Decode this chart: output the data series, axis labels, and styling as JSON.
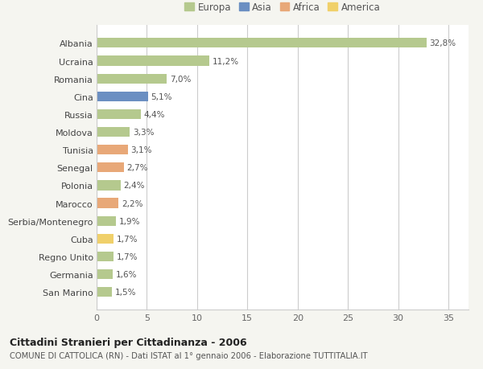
{
  "countries": [
    "Albania",
    "Ucraina",
    "Romania",
    "Cina",
    "Russia",
    "Moldova",
    "Tunisia",
    "Senegal",
    "Polonia",
    "Marocco",
    "Serbia/Montenegro",
    "Cuba",
    "Regno Unito",
    "Germania",
    "San Marino"
  ],
  "values": [
    32.8,
    11.2,
    7.0,
    5.1,
    4.4,
    3.3,
    3.1,
    2.7,
    2.4,
    2.2,
    1.9,
    1.7,
    1.7,
    1.6,
    1.5
  ],
  "labels": [
    "32,8%",
    "11,2%",
    "7,0%",
    "5,1%",
    "4,4%",
    "3,3%",
    "3,1%",
    "2,7%",
    "2,4%",
    "2,2%",
    "1,9%",
    "1,7%",
    "1,7%",
    "1,6%",
    "1,5%"
  ],
  "categories": [
    "Europa",
    "Europa",
    "Europa",
    "Asia",
    "Europa",
    "Europa",
    "Africa",
    "Africa",
    "Europa",
    "Africa",
    "Europa",
    "America",
    "Europa",
    "Europa",
    "Europa"
  ],
  "category_colors": {
    "Europa": "#b5c98e",
    "Asia": "#6b8fc2",
    "Africa": "#e8a878",
    "America": "#f0d06a"
  },
  "legend_order": [
    "Europa",
    "Asia",
    "Africa",
    "America"
  ],
  "title1": "Cittadini Stranieri per Cittadinanza - 2006",
  "title2": "COMUNE DI CATTOLICA (RN) - Dati ISTAT al 1° gennaio 2006 - Elaborazione TUTTITALIA.IT",
  "xlim": [
    0,
    37
  ],
  "xticks": [
    0,
    5,
    10,
    15,
    20,
    25,
    30,
    35
  ],
  "background_color": "#f5f5f0",
  "plot_bg_color": "#ffffff",
  "grid_color": "#cccccc"
}
